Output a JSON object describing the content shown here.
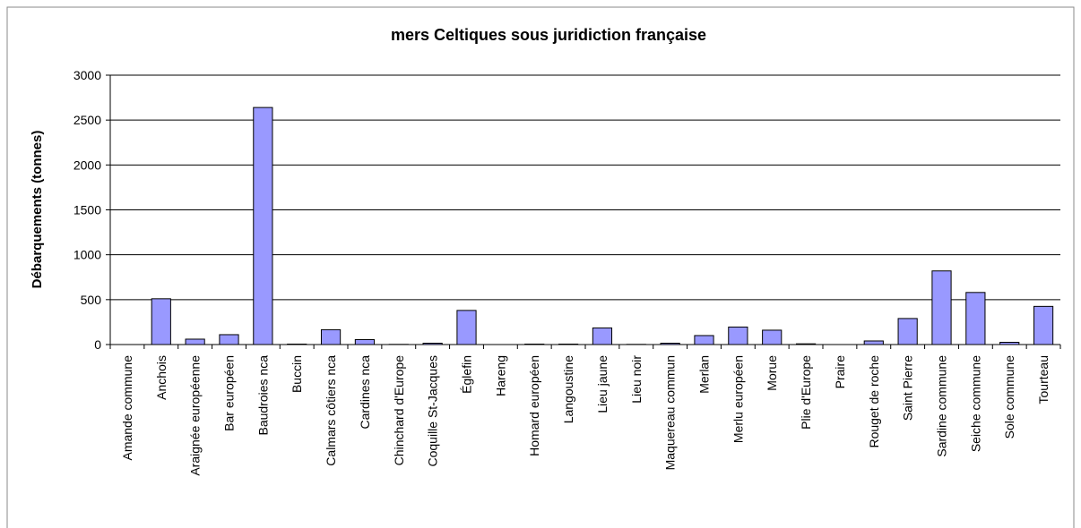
{
  "chart_data": {
    "type": "bar",
    "title": "mers Celtiques sous juridiction française",
    "y_label": "Débarquements (tonnes)",
    "categories": [
      "Amande commune",
      "Anchois",
      "Araignée européenne",
      "Bar européen",
      "Baudroies nca",
      "Buccin",
      "Calmars côtiers nca",
      "Cardines nca",
      "Chinchard d'Europe",
      "Coquille St-Jacques",
      "Églefin",
      "Hareng",
      "Homard européen",
      "Langoustine",
      "Lieu jaune",
      "Lieu noir",
      "Maquereau commun",
      "Merlan",
      "Merlu européen",
      "Morue",
      "Plie d'Europe",
      "Praire",
      "Rouget de roche",
      "Saint Pierre",
      "Sardine commune",
      "Seiche commune",
      "Sole commune",
      "Tourteau"
    ],
    "values": [
      0,
      510,
      60,
      110,
      2640,
      5,
      165,
      55,
      2,
      15,
      380,
      0,
      5,
      5,
      185,
      2,
      15,
      100,
      195,
      160,
      8,
      0,
      40,
      290,
      820,
      580,
      25,
      425
    ],
    "color": "#9999ff",
    "ylim": [
      0,
      3000
    ],
    "yticks": [
      0,
      500,
      1000,
      1500,
      2000,
      2500,
      3000
    ],
    "grid": true
  }
}
